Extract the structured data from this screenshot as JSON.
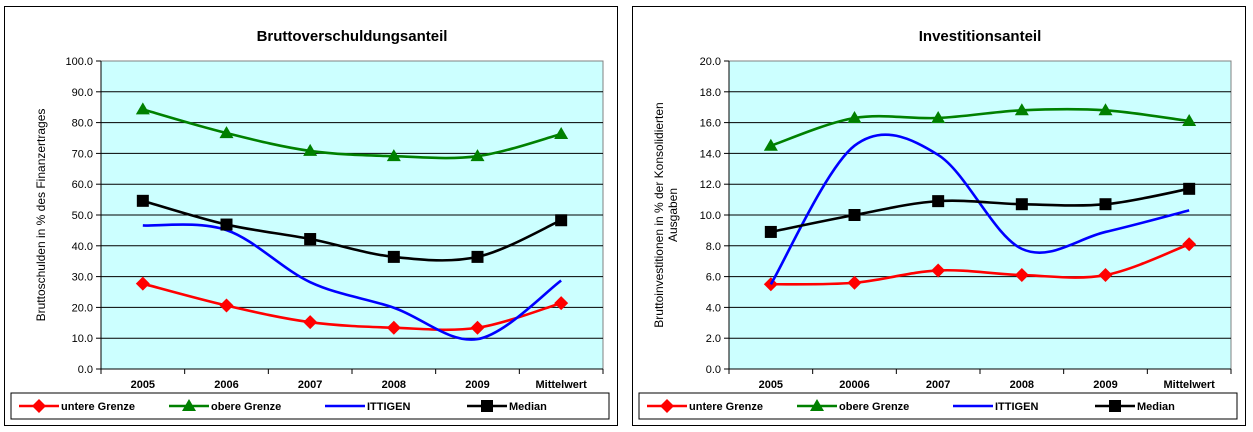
{
  "chart_data": [
    {
      "type": "line",
      "title": "Bruttoverschuldungsanteil",
      "ylabel": "Bruttoschulden in % des Finanzertrages",
      "xlabel": "",
      "categories": [
        "2005",
        "2006",
        "2007",
        "2008",
        "2009",
        "Mittelwert"
      ],
      "ylim": [
        0,
        100
      ],
      "ytick_labels": [
        "0.0",
        "10.0",
        "20.0",
        "30.0",
        "40.0",
        "50.0",
        "60.0",
        "70.0",
        "80.0",
        "90.0",
        "100.0"
      ],
      "grid": true,
      "plot_background": "#ccffff",
      "legend_position": "bottom",
      "series": [
        {
          "name": "untere Grenze",
          "color": "#ff0000",
          "marker": "diamond",
          "values": [
            27.7,
            20.6,
            15.2,
            13.4,
            13.4,
            21.4
          ]
        },
        {
          "name": "obere Grenze",
          "color": "#008000",
          "marker": "triangle",
          "values": [
            84.3,
            76.6,
            70.8,
            69.1,
            69.1,
            76.3
          ]
        },
        {
          "name": "ITTIGEN",
          "color": "#0000ff",
          "marker": "none",
          "values": [
            46.6,
            45.1,
            28.2,
            19.9,
            9.7,
            28.7
          ]
        },
        {
          "name": "Median",
          "color": "#000000",
          "marker": "square",
          "values": [
            54.6,
            46.9,
            42.2,
            36.4,
            36.4,
            48.3
          ]
        }
      ]
    },
    {
      "type": "line",
      "title": "Investitionsanteil",
      "ylabel": "Bruttoinvestitionen in % der Konsolidierten Ausgaben",
      "xlabel": "",
      "categories": [
        "2005",
        "20006",
        "2007",
        "2008",
        "2009",
        "Mittelwert"
      ],
      "ylim": [
        0,
        20
      ],
      "ytick_labels": [
        "0.0",
        "2.0",
        "4.0",
        "6.0",
        "8.0",
        "10.0",
        "12.0",
        "14.0",
        "16.0",
        "18.0",
        "20.0"
      ],
      "grid": true,
      "plot_background": "#ccffff",
      "legend_position": "bottom",
      "series": [
        {
          "name": "untere Grenze",
          "color": "#ff0000",
          "marker": "diamond",
          "values": [
            5.5,
            5.6,
            6.4,
            6.1,
            6.1,
            8.1
          ]
        },
        {
          "name": "obere Grenze",
          "color": "#008000",
          "marker": "triangle",
          "values": [
            14.5,
            16.3,
            16.3,
            16.8,
            16.8,
            16.1
          ]
        },
        {
          "name": "ITTIGEN",
          "color": "#0000ff",
          "marker": "none",
          "values": [
            5.5,
            14.5,
            13.9,
            7.8,
            8.9,
            10.3
          ]
        },
        {
          "name": "Median",
          "color": "#000000",
          "marker": "square",
          "values": [
            8.9,
            10.0,
            10.9,
            10.7,
            10.7,
            11.7
          ]
        }
      ]
    }
  ]
}
